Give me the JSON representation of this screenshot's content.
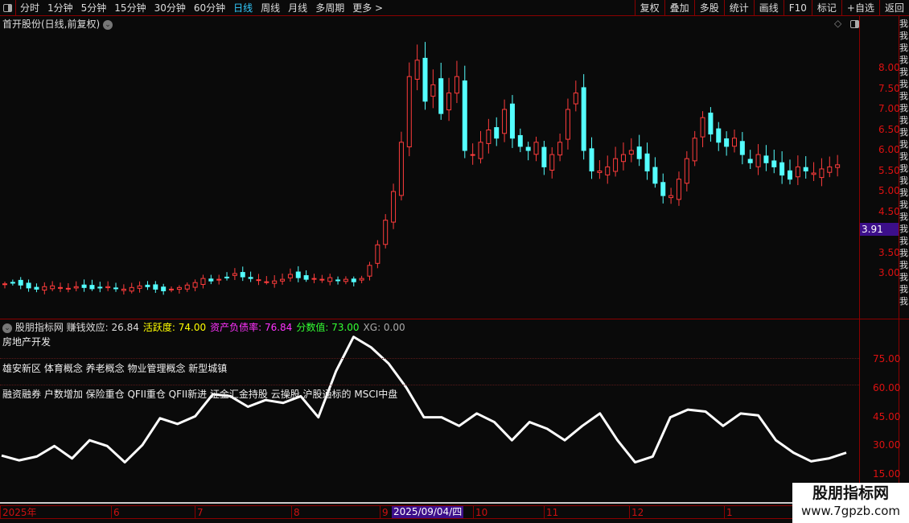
{
  "toolbar": {
    "periods": [
      "分时",
      "1分钟",
      "5分钟",
      "15分钟",
      "30分钟",
      "60分钟",
      "日线",
      "周线",
      "月线",
      "多周期",
      "更多 >"
    ],
    "active": "日线",
    "right_buttons": [
      "复权",
      "叠加",
      "多股",
      "统计",
      "画线",
      "F10",
      "标记",
      "+自选",
      "返回"
    ]
  },
  "chart": {
    "title": "首开股份(日线,前复权)",
    "current_price_label": "3.91",
    "price_ticks": [
      "8.00",
      "7.50",
      "7.00",
      "6.50",
      "6.00",
      "5.50",
      "5.00",
      "4.50",
      "3.50",
      "3.00"
    ],
    "up_color": "#ff3c3c",
    "down_color": "#54ffff"
  },
  "chart_data": {
    "type": "candlestick",
    "ylim": [
      2.3,
      9.0
    ],
    "closes": [
      2.75,
      2.78,
      2.72,
      2.65,
      2.62,
      2.68,
      2.7,
      2.66,
      2.64,
      2.68,
      2.66,
      2.63,
      2.65,
      2.68,
      2.64,
      2.62,
      2.66,
      2.7,
      2.68,
      2.62,
      2.58,
      2.62,
      2.66,
      2.72,
      2.78,
      2.88,
      2.82,
      2.86,
      2.9,
      3.0,
      2.92,
      2.88,
      2.85,
      2.8,
      2.82,
      2.86,
      2.98,
      2.9,
      2.86,
      2.88,
      2.86,
      2.9,
      2.84,
      2.86,
      2.8,
      2.88,
      3.2,
      3.7,
      4.3,
      5.0,
      6.2,
      7.8,
      8.2,
      7.2,
      7.6,
      6.9,
      7.4,
      7.8,
      6.0,
      5.9,
      6.2,
      6.5,
      6.3,
      7.0,
      6.3,
      6.1,
      6.0,
      6.2,
      5.6,
      5.9,
      6.2,
      7.0,
      7.4,
      6.0,
      5.5,
      5.5,
      5.6,
      5.8,
      5.9,
      6.0,
      5.8,
      5.5,
      5.2,
      4.9,
      4.9,
      5.3,
      5.8,
      6.3,
      6.8,
      6.4,
      6.2,
      6.1,
      6.3,
      5.9,
      5.7,
      5.9,
      5.7,
      5.6,
      5.4,
      5.3,
      5.6,
      5.5,
      5.45,
      5.55,
      5.6,
      5.65
    ],
    "indicator": {
      "ylim": [
        10,
        88
      ],
      "ticks": [
        "75.00",
        "60.00",
        "45.00",
        "30.00",
        "15.00"
      ],
      "values": [
        25,
        22.5,
        24.5,
        30,
        23.5,
        33,
        30,
        21.5,
        30.5,
        44.5,
        41.5,
        45.5,
        57,
        56,
        50.5,
        54,
        52.5,
        56,
        45,
        69,
        87,
        81.5,
        73,
        60.5,
        45,
        45,
        40.5,
        47,
        42.5,
        33,
        42.5,
        39,
        33,
        40.5,
        47,
        33,
        21.5,
        24.5,
        45,
        49,
        48,
        40.5,
        47,
        46,
        33,
        26.5,
        22,
        23.5,
        26.5
      ]
    }
  },
  "indicator": {
    "name": "股朋指标网",
    "items": [
      {
        "label": "赚钱效应: 26.84",
        "color": "#dddddd"
      },
      {
        "label": "活跃度: 74.00",
        "color": "#ffff00"
      },
      {
        "label": "资产负债率: 76.84",
        "color": "#ff33ff"
      },
      {
        "label": "分数值: 73.00",
        "color": "#33ff33"
      },
      {
        "label": "XG: 0.00",
        "color": "#aaaaaa"
      }
    ],
    "industry": "房地产开发",
    "concepts": "雄安新区 体育概念 养老概念 物业管理概念 新型城镇",
    "features": "融资融券 户数增加 保险重仓 QFII重仓 QFII新进 证金汇金持股 云操股 沪股通标的 MSCI中盘"
  },
  "dates": {
    "labels": [
      "2025年",
      "6",
      "7",
      "8",
      "9",
      "10",
      "11",
      "12",
      "1"
    ],
    "selected": "2025/09/04/四"
  },
  "watermark": {
    "name": "股朋指标网",
    "url": "www.7gpzb.com"
  }
}
